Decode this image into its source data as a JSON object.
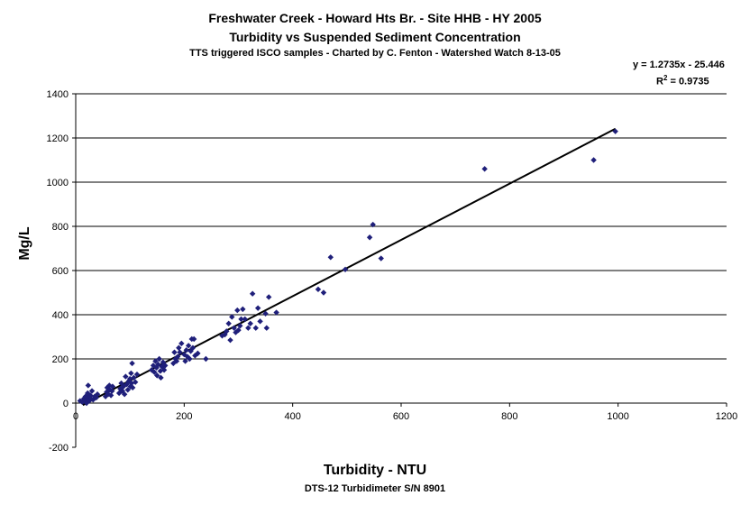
{
  "chart_data": {
    "type": "scatter",
    "title": "Freshwater Creek - Howard Hts Br. - Site HHB - HY 2005",
    "subtitle": "Turbidity vs Suspended Sediment Concentration",
    "subtitle2": "TTS triggered ISCO samples - Charted by C. Fenton - Watershed Watch 8-13-05",
    "equation": "y = 1.2735x - 25.446",
    "r2_prefix": "R",
    "r2_sup": "2",
    "r2_value": " = 0.9735",
    "xlabel": "Turbidity - NTU",
    "xlabel_sub": "DTS-12 Turbidimeter S/N 8901",
    "ylabel": "Mg/L",
    "xlim": [
      0,
      1200
    ],
    "ylim": [
      -200,
      1400
    ],
    "xticks": [
      0,
      200,
      400,
      600,
      800,
      1000,
      1200
    ],
    "yticks": [
      -200,
      0,
      200,
      400,
      600,
      800,
      1000,
      1200,
      1400
    ],
    "grid": "horizontal",
    "marker_color": "#1f1f7a",
    "trendline": {
      "slope": 1.2735,
      "intercept": -25.446,
      "x_range": [
        13,
        995
      ],
      "color": "#000000"
    },
    "points": [
      [
        8,
        10
      ],
      [
        12,
        5
      ],
      [
        15,
        20
      ],
      [
        17,
        12
      ],
      [
        18,
        30
      ],
      [
        20,
        0
      ],
      [
        21,
        25
      ],
      [
        22,
        45
      ],
      [
        23,
        80
      ],
      [
        24,
        15
      ],
      [
        25,
        10
      ],
      [
        27,
        35
      ],
      [
        28,
        20
      ],
      [
        30,
        55
      ],
      [
        32,
        15
      ],
      [
        35,
        30
      ],
      [
        38,
        25
      ],
      [
        40,
        40
      ],
      [
        55,
        30
      ],
      [
        57,
        50
      ],
      [
        58,
        70
      ],
      [
        60,
        40
      ],
      [
        62,
        80
      ],
      [
        63,
        60
      ],
      [
        65,
        35
      ],
      [
        67,
        55
      ],
      [
        68,
        75
      ],
      [
        80,
        45
      ],
      [
        82,
        65
      ],
      [
        84,
        90
      ],
      [
        86,
        55
      ],
      [
        88,
        75
      ],
      [
        90,
        40
      ],
      [
        92,
        120
      ],
      [
        94,
        85
      ],
      [
        96,
        60
      ],
      [
        98,
        100
      ],
      [
        100,
        110
      ],
      [
        101,
        75
      ],
      [
        102,
        135
      ],
      [
        103,
        90
      ],
      [
        104,
        180
      ],
      [
        105,
        70
      ],
      [
        107,
        115
      ],
      [
        110,
        95
      ],
      [
        113,
        130
      ],
      [
        140,
        150
      ],
      [
        143,
        170
      ],
      [
        145,
        140
      ],
      [
        147,
        190
      ],
      [
        149,
        160
      ],
      [
        150,
        125
      ],
      [
        152,
        175
      ],
      [
        154,
        200
      ],
      [
        156,
        145
      ],
      [
        157,
        115
      ],
      [
        159,
        165
      ],
      [
        161,
        185
      ],
      [
        163,
        150
      ],
      [
        165,
        170
      ],
      [
        180,
        180
      ],
      [
        182,
        230
      ],
      [
        184,
        200
      ],
      [
        186,
        190
      ],
      [
        188,
        210
      ],
      [
        190,
        250
      ],
      [
        192,
        230
      ],
      [
        195,
        270
      ],
      [
        200,
        220
      ],
      [
        202,
        190
      ],
      [
        204,
        240
      ],
      [
        206,
        210
      ],
      [
        208,
        260
      ],
      [
        210,
        200
      ],
      [
        212,
        235
      ],
      [
        214,
        290
      ],
      [
        216,
        250
      ],
      [
        218,
        290
      ],
      [
        220,
        215
      ],
      [
        225,
        225
      ],
      [
        240,
        200
      ],
      [
        270,
        305
      ],
      [
        275,
        310
      ],
      [
        278,
        325
      ],
      [
        282,
        360
      ],
      [
        285,
        285
      ],
      [
        288,
        390
      ],
      [
        292,
        340
      ],
      [
        295,
        320
      ],
      [
        298,
        420
      ],
      [
        300,
        330
      ],
      [
        303,
        350
      ],
      [
        305,
        380
      ],
      [
        308,
        425
      ],
      [
        312,
        380
      ],
      [
        318,
        340
      ],
      [
        322,
        360
      ],
      [
        326,
        495
      ],
      [
        332,
        340
      ],
      [
        336,
        430
      ],
      [
        340,
        370
      ],
      [
        350,
        405
      ],
      [
        352,
        340
      ],
      [
        356,
        480
      ],
      [
        370,
        410
      ],
      [
        447,
        515
      ],
      [
        457,
        500
      ],
      [
        470,
        660
      ],
      [
        497,
        605
      ],
      [
        542,
        750
      ],
      [
        548,
        808
      ],
      [
        563,
        655
      ],
      [
        754,
        1060
      ],
      [
        955,
        1100
      ],
      [
        995,
        1230
      ]
    ]
  }
}
